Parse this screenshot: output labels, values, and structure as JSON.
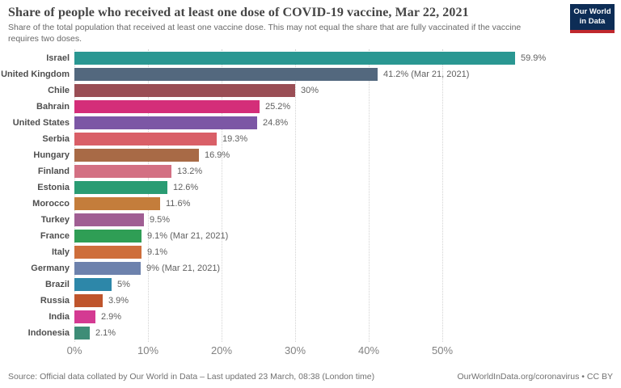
{
  "header": {
    "title": "Share of people who received at least one dose of COVID-19 vaccine, Mar 22, 2021",
    "subtitle": "Share of the total population that received at least one vaccine dose. This may not equal the share that are fully vaccinated if the vaccine requires two doses.",
    "logo": {
      "line1": "Our World",
      "line2": "in Data",
      "bg_color": "#0d2d56",
      "stripe_color": "#c0282d"
    }
  },
  "chart_data": {
    "type": "bar",
    "orientation": "horizontal",
    "title": "Share of people who received at least one dose of COVID-19 vaccine, Mar 22, 2021",
    "subtitle": "Share of the total population that received at least one vaccine dose. This may not equal the share that are fully vaccinated if the vaccine requires two doses.",
    "categories": [
      "Israel",
      "United Kingdom",
      "Chile",
      "Bahrain",
      "United States",
      "Serbia",
      "Hungary",
      "Finland",
      "Estonia",
      "Morocco",
      "Turkey",
      "France",
      "Italy",
      "Germany",
      "Brazil",
      "Russia",
      "India",
      "Indonesia"
    ],
    "values": [
      59.9,
      41.2,
      30,
      25.2,
      24.8,
      19.3,
      16.9,
      13.2,
      12.6,
      11.6,
      9.5,
      9.1,
      9.1,
      9,
      5,
      3.9,
      2.9,
      2.1
    ],
    "value_labels": [
      "59.9%",
      "41.2% (Mar 21, 2021)",
      "30%",
      "25.2%",
      "24.8%",
      "19.3%",
      "16.9%",
      "13.2%",
      "12.6%",
      "11.6%",
      "9.5%",
      "9.1% (Mar 21, 2021)",
      "9.1%",
      "9% (Mar 21, 2021)",
      "5%",
      "3.9%",
      "2.9%",
      "2.1%"
    ],
    "bar_colors": [
      "#2A9792",
      "#53687E",
      "#9A4E55",
      "#D42E79",
      "#7C57A5",
      "#D95F67",
      "#A86A46",
      "#D37083",
      "#2A9C73",
      "#C47D3B",
      "#A05E93",
      "#2F9E55",
      "#CE6E3B",
      "#6D82AD",
      "#2D87A9",
      "#BF552C",
      "#D43A92",
      "#3E8D77"
    ],
    "xlabel": "",
    "ylabel": "",
    "x_ticks": [
      "0%",
      "10%",
      "20%",
      "30%",
      "40%",
      "50%"
    ],
    "x_tick_values": [
      0,
      10,
      20,
      30,
      40,
      50
    ],
    "xlim": [
      0,
      72
    ],
    "grid": true,
    "legend": "none"
  },
  "footer": {
    "source": "Source: Official data collated by Our World in Data – Last updated 23 March, 08:38 (London time)",
    "link": "OurWorldInData.org/coronavirus",
    "license": " • CC BY"
  }
}
